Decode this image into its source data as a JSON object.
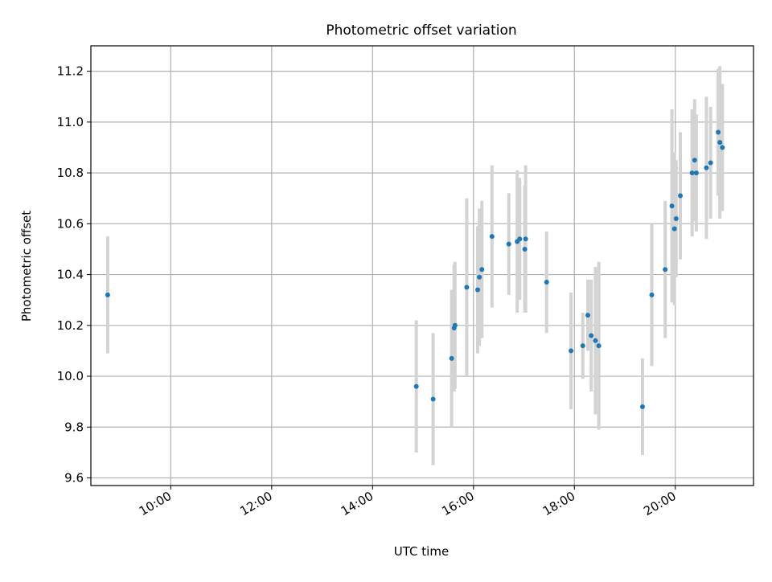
{
  "chart_data": {
    "type": "scatter",
    "title": "Photometric offset variation",
    "xlabel": "UTC time",
    "ylabel": "Photometric offset",
    "x_axis_type": "time",
    "xlim": [
      "08:25",
      "21:33"
    ],
    "ylim": [
      9.57,
      11.3
    ],
    "x_ticks": [
      "10:00",
      "12:00",
      "14:00",
      "16:00",
      "18:00",
      "20:00"
    ],
    "y_ticks": [
      9.6,
      9.8,
      10.0,
      10.2,
      10.4,
      10.6,
      10.8,
      11.0,
      11.2
    ],
    "grid": true,
    "legend": "none",
    "marker_color": "#1f77b4",
    "errorbar_color": "#d3d3d3",
    "points": [
      {
        "t": "08:45",
        "y": 10.32,
        "err": 0.23
      },
      {
        "t": "14:52",
        "y": 9.96,
        "err": 0.26
      },
      {
        "t": "15:12",
        "y": 9.91,
        "err": 0.26
      },
      {
        "t": "15:34",
        "y": 10.07,
        "err": 0.27
      },
      {
        "t": "15:37",
        "y": 10.19,
        "err": 0.25
      },
      {
        "t": "15:38",
        "y": 10.2,
        "err": 0.25
      },
      {
        "t": "15:52",
        "y": 10.35,
        "err": 0.35
      },
      {
        "t": "16:05",
        "y": 10.34,
        "err": 0.25
      },
      {
        "t": "16:07",
        "y": 10.39,
        "err": 0.27
      },
      {
        "t": "16:10",
        "y": 10.42,
        "err": 0.27
      },
      {
        "t": "16:22",
        "y": 10.55,
        "err": 0.28
      },
      {
        "t": "16:42",
        "y": 10.52,
        "err": 0.2
      },
      {
        "t": "16:52",
        "y": 10.53,
        "err": 0.28
      },
      {
        "t": "16:55",
        "y": 10.54,
        "err": 0.24
      },
      {
        "t": "17:01",
        "y": 10.5,
        "err": 0.25
      },
      {
        "t": "17:02",
        "y": 10.54,
        "err": 0.29
      },
      {
        "t": "17:27",
        "y": 10.37,
        "err": 0.2
      },
      {
        "t": "17:56",
        "y": 10.1,
        "err": 0.23
      },
      {
        "t": "18:10",
        "y": 10.12,
        "err": 0.13
      },
      {
        "t": "18:16",
        "y": 10.24,
        "err": 0.14
      },
      {
        "t": "18:20",
        "y": 10.16,
        "err": 0.22
      },
      {
        "t": "18:25",
        "y": 10.14,
        "err": 0.29
      },
      {
        "t": "18:29",
        "y": 10.12,
        "err": 0.33
      },
      {
        "t": "19:21",
        "y": 9.88,
        "err": 0.19
      },
      {
        "t": "19:32",
        "y": 10.32,
        "err": 0.28
      },
      {
        "t": "19:48",
        "y": 10.42,
        "err": 0.27
      },
      {
        "t": "19:56",
        "y": 10.67,
        "err": 0.38
      },
      {
        "t": "19:59",
        "y": 10.58,
        "err": 0.3
      },
      {
        "t": "20:01",
        "y": 10.62,
        "err": 0.23
      },
      {
        "t": "20:06",
        "y": 10.71,
        "err": 0.25
      },
      {
        "t": "20:20",
        "y": 10.8,
        "err": 0.25
      },
      {
        "t": "20:23",
        "y": 10.85,
        "err": 0.24
      },
      {
        "t": "20:25",
        "y": 10.8,
        "err": 0.23
      },
      {
        "t": "20:37",
        "y": 10.82,
        "err": 0.28
      },
      {
        "t": "20:42",
        "y": 10.84,
        "err": 0.22
      },
      {
        "t": "20:51",
        "y": 10.96,
        "err": 0.25
      },
      {
        "t": "20:53",
        "y": 10.92,
        "err": 0.3
      },
      {
        "t": "20:56",
        "y": 10.9,
        "err": 0.25
      }
    ]
  }
}
